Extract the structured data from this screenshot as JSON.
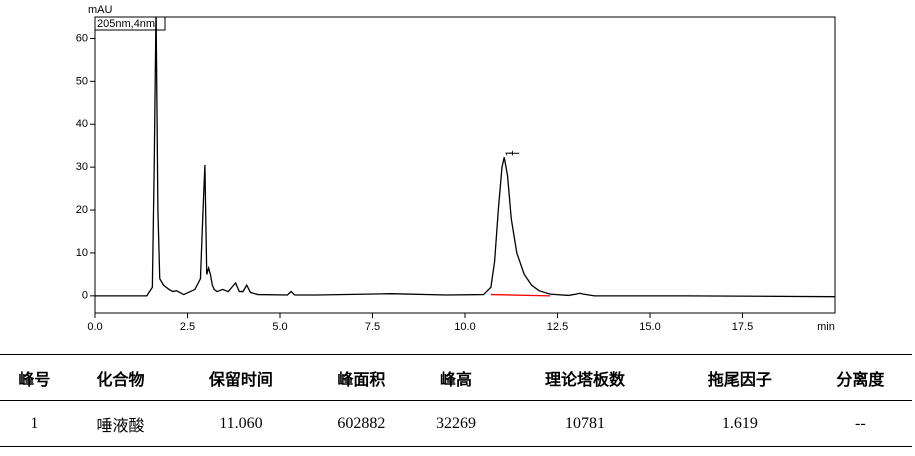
{
  "chart_data": {
    "type": "line",
    "ylabel": "mAU",
    "xlabel": "min",
    "annotations": [
      "205nm,4nm"
    ],
    "peak_labels": [
      {
        "x": 11.06,
        "y": 32.3,
        "label": "1"
      }
    ],
    "xlim": [
      0,
      20
    ],
    "ylim": [
      -4,
      65
    ],
    "xticks": [
      {
        "value": 0,
        "label": "0.0"
      },
      2.5,
      {
        "value": 5,
        "label": "5.0"
      },
      7.5,
      {
        "value": 10,
        "label": "10.0"
      },
      12.5,
      {
        "value": 15,
        "label": "15.0"
      },
      17.5
    ],
    "yticks": [
      0,
      10,
      20,
      30,
      40,
      50,
      60
    ],
    "series": [
      {
        "color": "#000000",
        "x": [
          0,
          1.4,
          1.55,
          1.6,
          1.65,
          1.7,
          1.75,
          1.85,
          2.0,
          2.1,
          2.2,
          2.4,
          2.7,
          2.85,
          2.92,
          2.97,
          3.02,
          3.07,
          3.12,
          3.17,
          3.22,
          3.3,
          3.45,
          3.6,
          3.7,
          3.8,
          3.9,
          4.0,
          4.1,
          4.2,
          4.4,
          5.2,
          5.3,
          5.4,
          6.0,
          8.0,
          9.5,
          10.5,
          10.7,
          10.8,
          10.9,
          11.0,
          11.06,
          11.15,
          11.25,
          11.4,
          11.6,
          11.8,
          12.0,
          12.3,
          12.8,
          13.0,
          13.1,
          13.2,
          13.5,
          16,
          20
        ],
        "values": [
          0,
          0,
          2,
          30,
          67,
          20,
          4,
          2.5,
          1.5,
          1,
          1.2,
          0.3,
          1.5,
          4,
          20,
          30.5,
          5,
          6.5,
          5,
          2.5,
          1.5,
          1,
          1.5,
          1,
          2,
          3,
          1,
          1,
          2.5,
          0.8,
          0.3,
          0.2,
          1,
          0.2,
          0.2,
          0.5,
          0.2,
          0.3,
          2,
          8,
          20,
          30,
          32.3,
          28,
          18,
          10,
          5,
          2.5,
          1.2,
          0.4,
          0.1,
          0.4,
          0.6,
          0.4,
          0,
          0,
          -0.2
        ]
      },
      {
        "color": "#ff0000",
        "x": [
          10.7,
          12.3
        ],
        "values": [
          0.3,
          0
        ]
      }
    ]
  },
  "table": {
    "header": [
      "峰号",
      "化合物",
      "保留时间",
      "峰面积",
      "峰高",
      "理论塔板数",
      "拖尾因子",
      "分离度"
    ],
    "rows": [
      [
        "1",
        "唾液酸",
        "11.060",
        "602882",
        "32269",
        "10781",
        "1.619",
        "--"
      ]
    ]
  }
}
